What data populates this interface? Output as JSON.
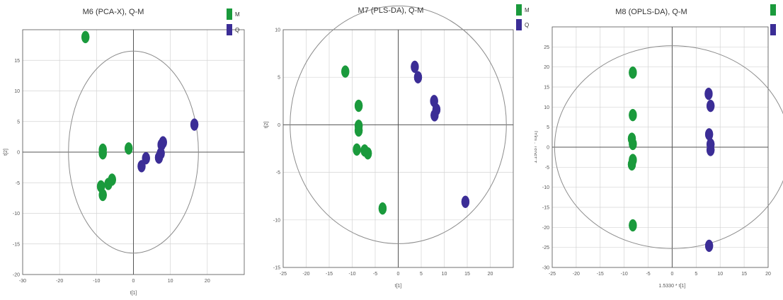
{
  "colors": {
    "M": "#1a9a3c",
    "Q": "#3b2d96",
    "grid": "#d4d4d4",
    "axis": "#555555",
    "circle": "#8c8c8c"
  },
  "chart_data": [
    {
      "type": "scatter",
      "title": "M6 (PCA-X), Q-M",
      "xlabel": "t[1]",
      "ylabel": "t[2]",
      "xlim": [
        -30,
        30
      ],
      "ylim": [
        -20,
        20
      ],
      "xticks": [
        "-30",
        "-20",
        "-10",
        "0",
        "10",
        "20"
      ],
      "yticks": [
        "-20",
        "-15",
        "-10",
        "-5",
        "0",
        "5",
        "10",
        "15"
      ],
      "ellipse": {
        "rx": 17.6,
        "ry": 16.5
      },
      "legend": [
        {
          "label": "M"
        },
        {
          "label": "Q"
        }
      ],
      "series": [
        {
          "name": "M",
          "points": [
            [
              -13,
              18.8
            ],
            [
              -8.3,
              0.4
            ],
            [
              -8.3,
              -0.2
            ],
            [
              -1.3,
              0.6
            ],
            [
              -5.8,
              -4.5
            ],
            [
              -6.8,
              -5.2
            ],
            [
              -8.8,
              -5.6
            ],
            [
              -8.3,
              -7.0
            ]
          ]
        },
        {
          "name": "Q",
          "points": [
            [
              16.5,
              4.5
            ],
            [
              8.0,
              1.6
            ],
            [
              7.6,
              1.2
            ],
            [
              7.4,
              -0.2
            ],
            [
              6.9,
              -0.9
            ],
            [
              3.4,
              -1.0
            ],
            [
              2.2,
              -2.3
            ]
          ]
        }
      ]
    },
    {
      "type": "scatter",
      "title": "M7 (PLS-DA), Q-M",
      "xlabel": "t[1]",
      "ylabel": "t[2]",
      "xlim": [
        -25,
        25
      ],
      "ylim": [
        -15,
        10
      ],
      "xticks": [
        "-25",
        "-20",
        "-15",
        "-10",
        "-5",
        "0",
        "5",
        "10",
        "15",
        "20"
      ],
      "yticks": [
        "-15",
        "-10",
        "-5",
        "0",
        "5",
        "10"
      ],
      "ellipse": {
        "rx": 23.5,
        "ry": 12.5
      },
      "legend": [
        {
          "label": "M"
        },
        {
          "label": "Q"
        }
      ],
      "series": [
        {
          "name": "M",
          "points": [
            [
              -11.5,
              5.6
            ],
            [
              -8.6,
              2.0
            ],
            [
              -8.6,
              -0.1
            ],
            [
              -8.6,
              -0.6
            ],
            [
              -9.0,
              -2.6
            ],
            [
              -7.3,
              -2.7
            ],
            [
              -6.6,
              -3.0
            ],
            [
              -3.4,
              -8.8
            ]
          ]
        },
        {
          "name": "Q",
          "points": [
            [
              3.6,
              6.1
            ],
            [
              4.3,
              5.0
            ],
            [
              7.8,
              2.5
            ],
            [
              8.3,
              1.6
            ],
            [
              7.9,
              1.0
            ],
            [
              14.6,
              -8.1
            ]
          ]
        }
      ]
    },
    {
      "type": "scatter",
      "title": "M8 (OPLS-DA), Q-M",
      "xlabel": "1.5330 * t[1]",
      "ylabel": "1.19037 * to[1]",
      "xlim": [
        -25,
        20
      ],
      "ylim": [
        -30,
        30
      ],
      "xticks": [
        "-25",
        "-20",
        "-15",
        "-10",
        "-5",
        "0",
        "5",
        "10",
        "15",
        "20"
      ],
      "yticks": [
        "-30",
        "-25",
        "-20",
        "-15",
        "-10",
        "-5",
        "0",
        "5",
        "10",
        "15",
        "20",
        "25"
      ],
      "ellipse": {
        "rx": 24.5,
        "ry": 25.3
      },
      "legend": [
        {
          "label": ""
        },
        {
          "label": ""
        }
      ],
      "series": [
        {
          "name": "M",
          "points": [
            [
              -8.2,
              18.6
            ],
            [
              -8.2,
              8.0
            ],
            [
              -8.4,
              2.1
            ],
            [
              -8.2,
              0.8
            ],
            [
              -8.2,
              -3.2
            ],
            [
              -8.4,
              -4.3
            ],
            [
              -8.2,
              -19.5
            ]
          ]
        },
        {
          "name": "Q",
          "points": [
            [
              7.6,
              13.3
            ],
            [
              8.0,
              10.3
            ],
            [
              7.7,
              3.2
            ],
            [
              8.0,
              0.7
            ],
            [
              8.0,
              -0.7
            ],
            [
              7.7,
              -24.6
            ]
          ]
        }
      ]
    }
  ]
}
